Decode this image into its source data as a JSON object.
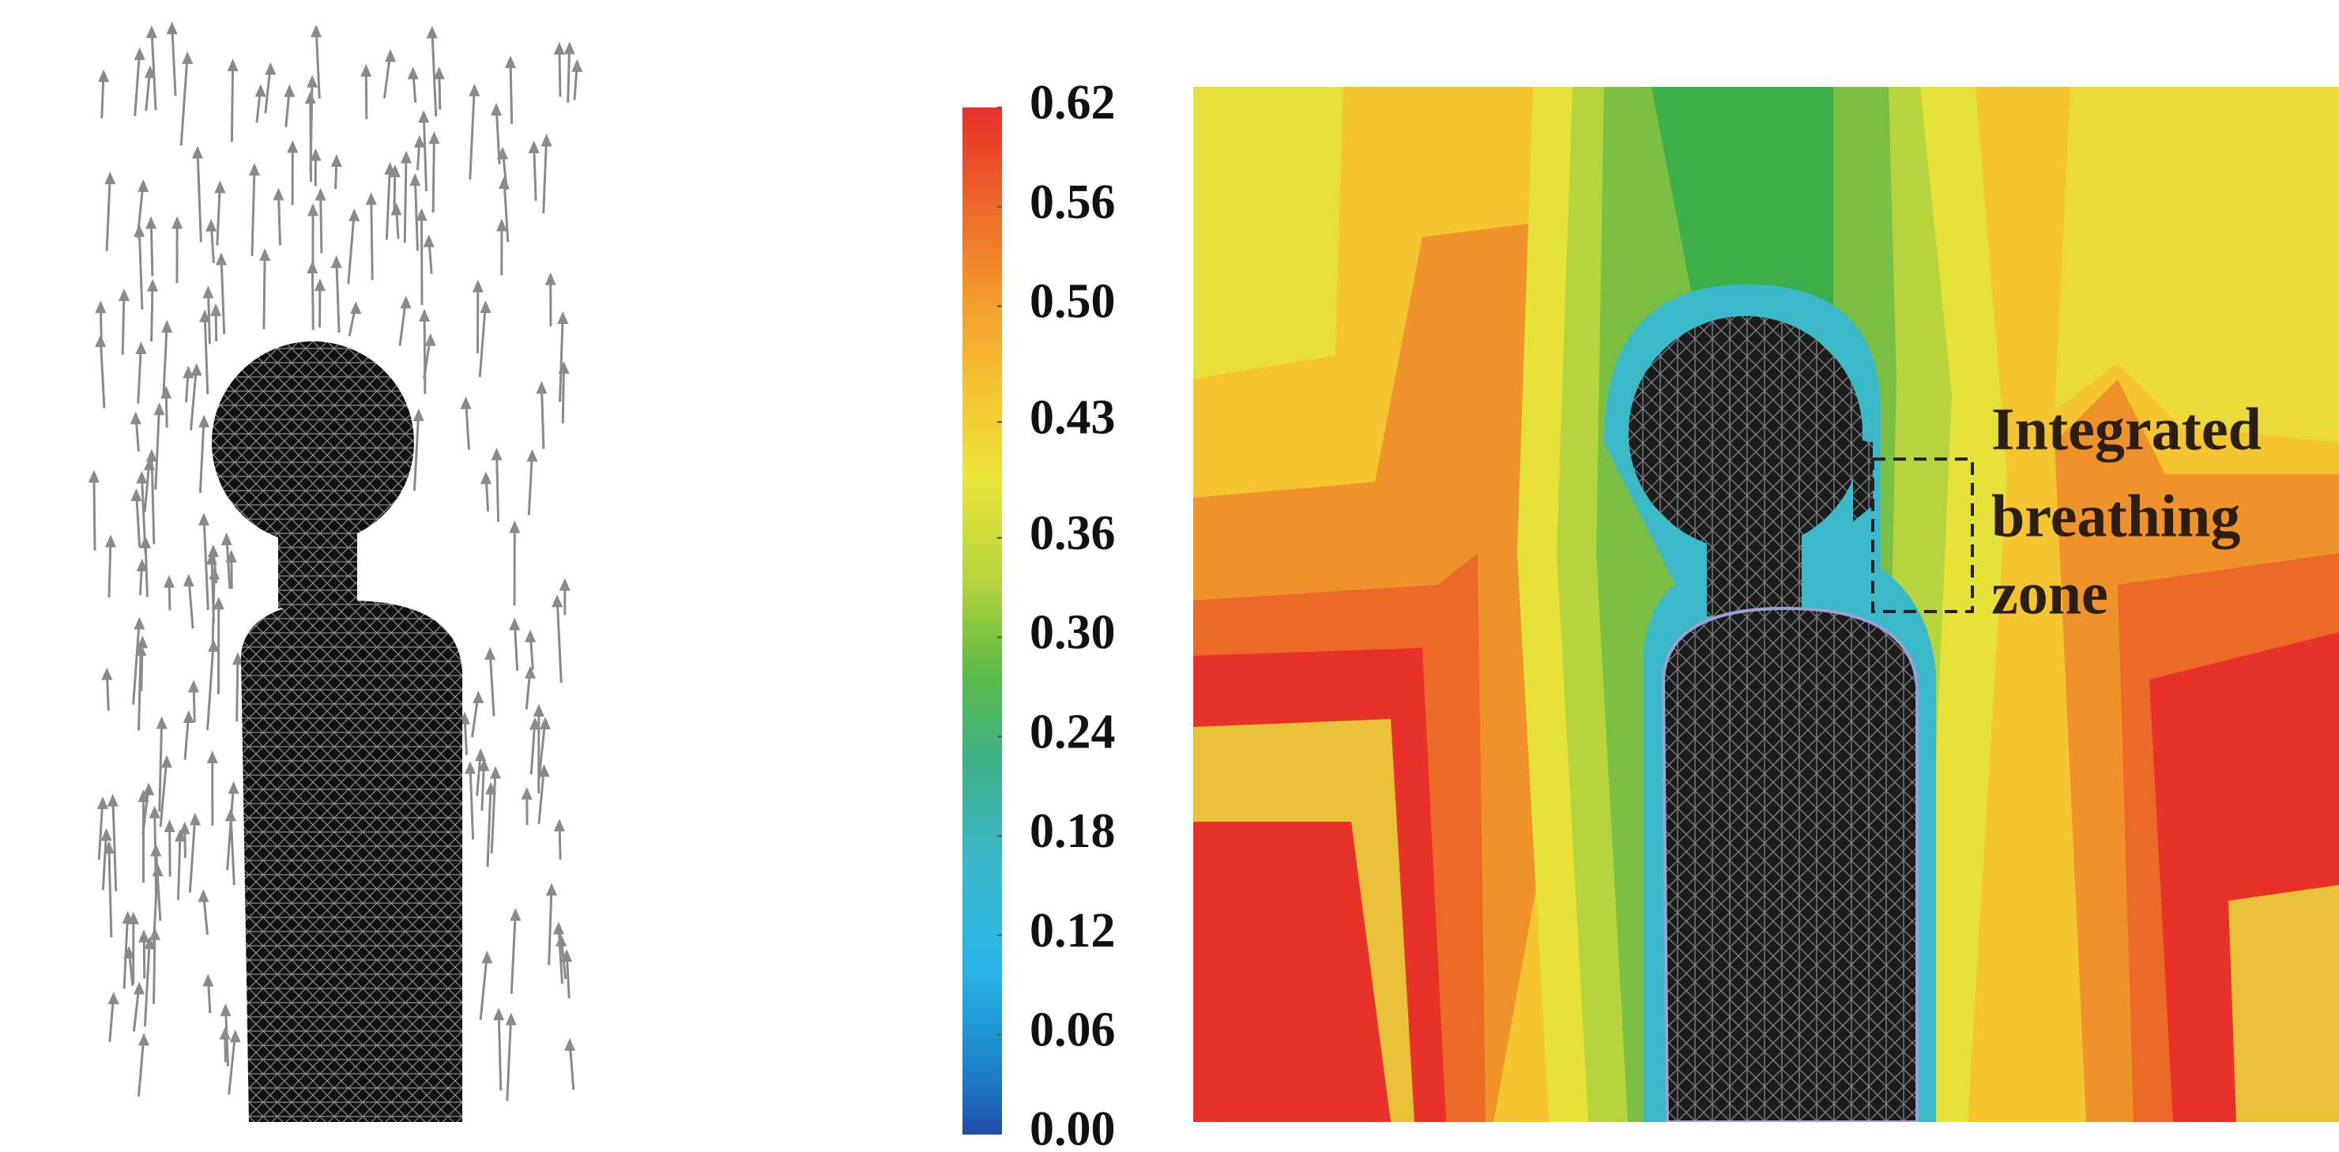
{
  "colorbar": {
    "ticks": [
      {
        "value": 0.62,
        "label": "0.62"
      },
      {
        "value": 0.56,
        "label": "0.56"
      },
      {
        "value": 0.5,
        "label": "0.50"
      },
      {
        "value": 0.43,
        "label": "0.43"
      },
      {
        "value": 0.36,
        "label": "0.36"
      },
      {
        "value": 0.3,
        "label": "0.30"
      },
      {
        "value": 0.24,
        "label": "0.24"
      },
      {
        "value": 0.18,
        "label": "0.18"
      },
      {
        "value": 0.12,
        "label": "0.12"
      },
      {
        "value": 0.06,
        "label": "0.06"
      },
      {
        "value": 0,
        "label": "0.00"
      }
    ]
  },
  "annotation": {
    "lines": [
      "Integrated",
      "breathing",
      "zone"
    ]
  }
}
